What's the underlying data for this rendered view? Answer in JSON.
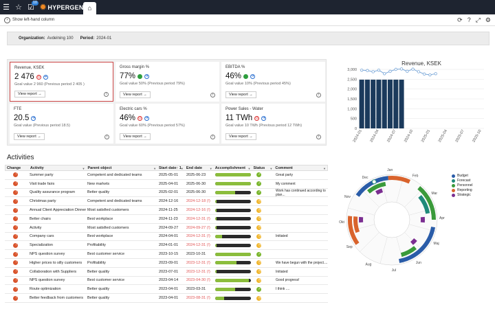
{
  "topbar": {
    "badge": "10",
    "brand": "HYPERGENE"
  },
  "subbar": {
    "show_left_column": "Show left-hand column"
  },
  "filter": {
    "org_label": "Organization:",
    "org_value": "Avdelning 100",
    "period_label": "Period:",
    "period_value": "2024-01"
  },
  "kpis": [
    {
      "title": "Revenue, KSEK",
      "value": "2 476",
      "goal": "Goal value 2 960 (Previous period 2 405 )",
      "button": "View report",
      "status": "red",
      "selected": true
    },
    {
      "title": "Gross margin %",
      "value": "77%",
      "goal": "Goal value 50% (Previous period 79%)",
      "button": "View report",
      "status": "green"
    },
    {
      "title": "EBITDA %",
      "value": "46%",
      "goal": "Goal value 10% (Previous period 45%)",
      "button": "View report",
      "status": "green"
    },
    {
      "title": "FTE",
      "value": "20.5",
      "goal": "Goal value (Previous period 18.5)",
      "button": "View report",
      "status": "none"
    },
    {
      "title": "Electric cars %",
      "value": "46%",
      "goal": "Goal value 60% (Previous period 57%)",
      "button": "View report",
      "status": "red"
    },
    {
      "title": "Power Sales - Water",
      "value": "11 TWh",
      "goal": "Goal value 10 TWh (Previous period 12 TWh)",
      "button": "View report",
      "status": "red"
    }
  ],
  "chart_data": {
    "type": "bar",
    "title": "Revenue, KSEK",
    "categories": [
      "2024-01",
      "2024-02",
      "2024-03",
      "2024-04",
      "2024-05",
      "2024-06",
      "2024-07",
      "2024-08",
      "2024-09",
      "2024-10",
      "2024-11",
      "2024-12",
      "2025-01",
      "2025-02",
      "2025-03",
      "2025-04",
      "2025-05",
      "2025-06",
      "2025-07",
      "2025-08",
      "2025-09",
      "2025-10"
    ],
    "x_ticks": [
      "2024-01",
      "2024-04",
      "2024-07",
      "2024-10",
      "2025-01",
      "2025-04",
      "2025-07",
      "2025-10"
    ],
    "series": [
      {
        "kind": "bar",
        "values": [
          2476,
          2476,
          2476,
          2476,
          2476,
          2476,
          2476,
          2476,
          null,
          null,
          null,
          null,
          null,
          null,
          null,
          null,
          null,
          null,
          null,
          null,
          null,
          null
        ]
      },
      {
        "kind": "line",
        "values": [
          2960,
          2940,
          2880,
          2960,
          2780,
          2900,
          3000,
          3020,
          2900,
          3010,
          2880,
          2760,
          2720,
          2780,
          null,
          null,
          null,
          null,
          null,
          null,
          null,
          null
        ]
      }
    ],
    "yticks": [
      0,
      500,
      1000,
      1500,
      2000,
      2500,
      3000
    ],
    "ylim": [
      0,
      3000
    ],
    "colors": {
      "bar": "#1b3a5c",
      "line": "#7aa7d8"
    }
  },
  "activities": {
    "title": "Activities",
    "columns": [
      "Change",
      "Activity",
      "Parent object",
      "Start date↑ 1",
      "End date",
      "Accomplishment",
      "Status",
      "Comment"
    ],
    "rows": [
      {
        "activity": "Summer party",
        "parent": "Competent and dedicated teams",
        "start": "2025-05-01",
        "end": "2025-06-23",
        "late": false,
        "progress": 1.0,
        "status": "ok",
        "comment": "Great party"
      },
      {
        "activity": "Visit trade fairs",
        "parent": "New markets",
        "start": "2025-04-01",
        "end": "2025-06-30",
        "late": false,
        "progress": 1.0,
        "status": "ok",
        "comment": "My comment"
      },
      {
        "activity": "Quality assurance program",
        "parent": "Better quality",
        "start": "2025-02-01",
        "end": "2025-06-30",
        "late": false,
        "progress": 0.55,
        "status": "ok",
        "comment": "Work has continued according to plan..."
      },
      {
        "activity": "Christmas party",
        "parent": "Competent and dedicated teams",
        "start": "2024-12-16",
        "end": "2024-12-18 (!)",
        "late": true,
        "progress": 0.0,
        "status": "warn",
        "comment": ""
      },
      {
        "activity": "Annual Client Appreciation Dinner",
        "parent": "Most satisfied customers",
        "start": "2024-11-25",
        "end": "2024-12-16 (!)",
        "late": true,
        "progress": 0.0,
        "status": "warn",
        "comment": ""
      },
      {
        "activity": "Better chairs",
        "parent": "Best workplace",
        "start": "2024-11-23",
        "end": "2024-12-31 (!)",
        "late": true,
        "progress": 0.0,
        "status": "warn",
        "comment": ""
      },
      {
        "activity": "Activity",
        "parent": "Most satisfied customers",
        "start": "2024-09-27",
        "end": "2024-09-27 (!)",
        "late": true,
        "progress": 0.0,
        "status": "warn",
        "comment": ""
      },
      {
        "activity": "Company cars",
        "parent": "Best workplace",
        "start": "2024-04-01",
        "end": "2024-12-31 (!)",
        "late": true,
        "progress": 0.2,
        "status": "warn",
        "comment": "Initiated"
      },
      {
        "activity": "Specialization",
        "parent": "Profitability",
        "start": "2024-01-01",
        "end": "2024-12-31 (!)",
        "late": true,
        "progress": 0.0,
        "status": "warn",
        "comment": ""
      },
      {
        "activity": "NPS question survey",
        "parent": "Best customer service",
        "start": "2023-10-15",
        "end": "2023-10-31",
        "late": false,
        "progress": 1.0,
        "status": "ok",
        "comment": ""
      },
      {
        "activity": "Higher prices to silly customers",
        "parent": "Profitability",
        "start": "2023-09-01",
        "end": "2023-12-31 (!)",
        "late": true,
        "progress": 0.6,
        "status": "warn",
        "comment": "We have begun with the project...."
      },
      {
        "activity": "Collaboration with Suppliers",
        "parent": "Better quality",
        "start": "2023-07-01",
        "end": "2023-12-31 (!)",
        "late": true,
        "progress": 0.0,
        "status": "warn",
        "comment": "Initiated"
      },
      {
        "activity": "NPS question survey",
        "parent": "Best customer service",
        "start": "2023-04-14",
        "end": "2023-04-30 (!)",
        "late": true,
        "progress": 0.95,
        "status": "warn",
        "comment": "Good progress!"
      },
      {
        "activity": "Route optimization",
        "parent": "Better quality",
        "start": "2023-04-01",
        "end": "2023-03-31",
        "late": false,
        "progress": 0.55,
        "status": "ok",
        "comment": "I think ...."
      },
      {
        "activity": "Better feedback from customers",
        "parent": "Better quality",
        "start": "2023-04-01",
        "end": "2023-08-31 (!)",
        "late": true,
        "progress": 0.25,
        "status": "warn",
        "comment": ""
      }
    ]
  },
  "radial": {
    "months": [
      "Jan",
      "Feb",
      "Mar",
      "Apr",
      "Maj",
      "Jun",
      "Jul",
      "Aug",
      "Sep",
      "Okt",
      "Nov",
      "Dec"
    ],
    "legend": [
      {
        "label": "Budget",
        "color": "#2a5ca8"
      },
      {
        "label": "Forecast",
        "color": "#1f8a7a"
      },
      {
        "label": "Personnel",
        "color": "#3a9a3a"
      },
      {
        "label": "Reporting",
        "color": "#d9632c"
      },
      {
        "label": "Strategic",
        "color": "#7b2e91"
      }
    ]
  }
}
